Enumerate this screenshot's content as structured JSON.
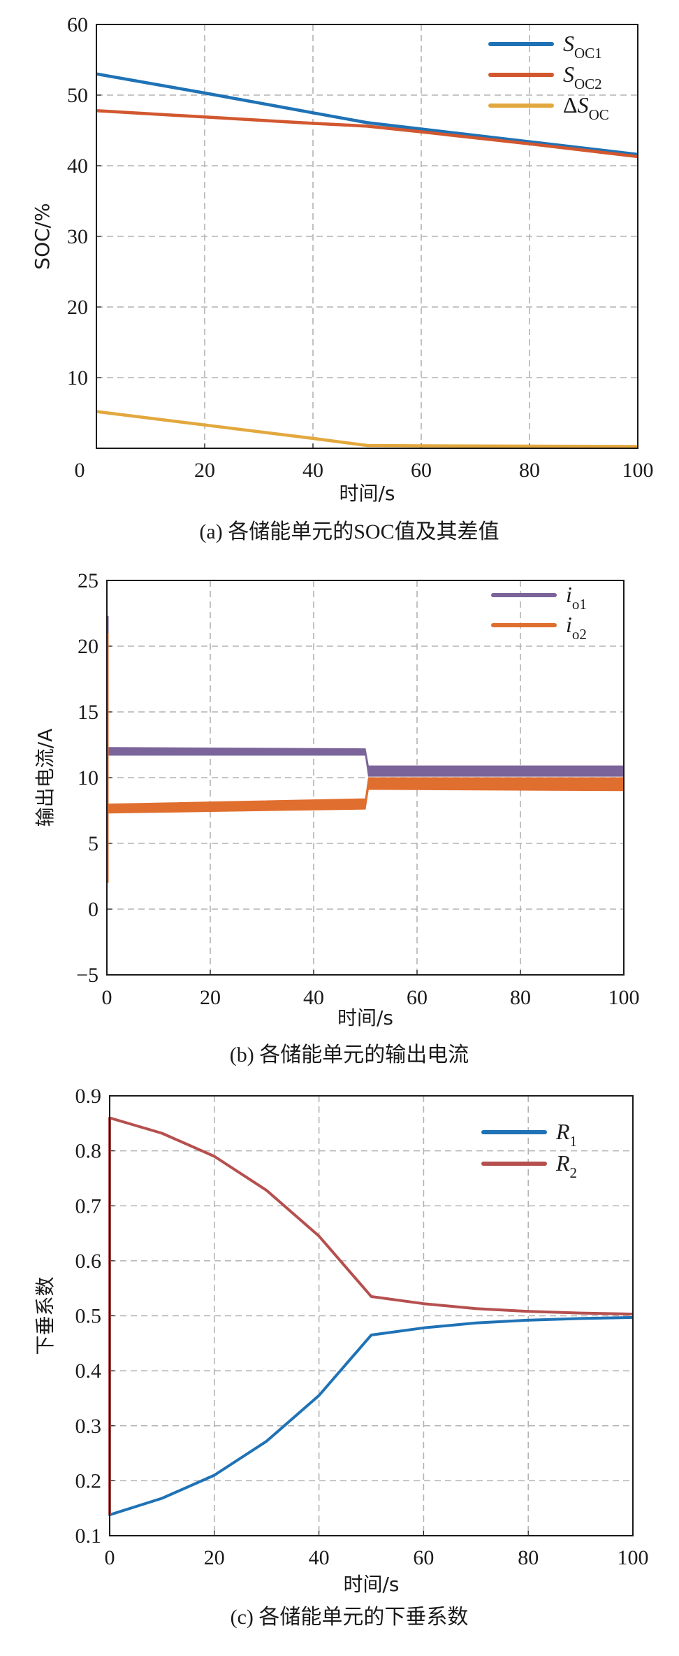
{
  "chart_data": [
    {
      "type": "line",
      "caption": "(a) 各储能单元的SOC值及其差值",
      "xlabel": "时间/s",
      "ylabel": "SOC/%",
      "xlim": [
        0,
        100
      ],
      "ylim": [
        0,
        60
      ],
      "xticks": [
        0,
        20,
        40,
        60,
        80,
        100
      ],
      "yticks": [
        10,
        20,
        30,
        40,
        50,
        60
      ],
      "ytick_labels": [
        "10",
        "20",
        "30",
        "40",
        "50",
        "60"
      ],
      "xtick_labels": [
        "0",
        "20",
        "40",
        "60",
        "80",
        "100"
      ],
      "grid": true,
      "legend_position": "top-right",
      "series": [
        {
          "name": "S",
          "sub": "OC1",
          "prefix": "",
          "color": "#1f72b5",
          "x": [
            0,
            20,
            40,
            50,
            60,
            80,
            100
          ],
          "y": [
            53.0,
            50.3,
            47.5,
            46.1,
            45.2,
            43.4,
            41.6
          ]
        },
        {
          "name": "S",
          "sub": "OC2",
          "prefix": "",
          "color": "#d2572f",
          "x": [
            0,
            20,
            40,
            50,
            60,
            80,
            100
          ],
          "y": [
            47.8,
            46.9,
            46.0,
            45.6,
            44.8,
            43.1,
            41.3
          ]
        },
        {
          "name": "S",
          "sub": "OC",
          "prefix": "Δ",
          "color": "#e3a83d",
          "x": [
            0,
            20,
            40,
            50,
            60,
            80,
            100
          ],
          "y": [
            5.2,
            3.3,
            1.4,
            0.4,
            0.35,
            0.3,
            0.25
          ]
        }
      ]
    },
    {
      "type": "line",
      "caption": "(b) 各储能单元的输出电流",
      "xlabel": "时间/s",
      "ylabel": "输出电流/A",
      "xlim": [
        0,
        100
      ],
      "ylim": [
        -5,
        25
      ],
      "xticks": [
        0,
        20,
        40,
        60,
        80,
        100
      ],
      "xtick_labels": [
        "0",
        "20",
        "40",
        "60",
        "80",
        "100"
      ],
      "yticks": [
        -5,
        0,
        5,
        10,
        15,
        20,
        25
      ],
      "ytick_labels": [
        "−5",
        "0",
        "5",
        "10",
        "15",
        "20",
        "25"
      ],
      "grid": true,
      "legend_position": "top-right",
      "series": [
        {
          "name": "i",
          "sub": "o1",
          "color": "#7a6499",
          "band": {
            "x": [
              0.3,
              50,
              50.6,
              100
            ],
            "upper": [
              12.3,
              12.2,
              10.9,
              10.9
            ],
            "lower": [
              11.7,
              11.7,
              10.1,
              10.1
            ]
          },
          "startup": {
            "x": 0,
            "from": 22.3,
            "to": 12.3
          }
        },
        {
          "name": "i",
          "sub": "o2",
          "color": "#e06e2f",
          "band": {
            "x": [
              0.3,
              50,
              50.6,
              100
            ],
            "upper": [
              8.0,
              8.4,
              10.0,
              10.0
            ],
            "lower": [
              7.3,
              7.6,
              9.1,
              9.0
            ]
          },
          "startup": {
            "x": 0,
            "from": 21.0,
            "to": 2.0
          }
        }
      ]
    },
    {
      "type": "line",
      "caption": "(c) 各储能单元的下垂系数",
      "xlabel": "时间/s",
      "ylabel": "下垂系数",
      "xlim": [
        0,
        100
      ],
      "ylim": [
        0.1,
        0.9
      ],
      "xticks": [
        0,
        20,
        40,
        60,
        80,
        100
      ],
      "xtick_labels": [
        "0",
        "20",
        "40",
        "60",
        "80",
        "100"
      ],
      "yticks": [
        0.1,
        0.2,
        0.3,
        0.4,
        0.5,
        0.6,
        0.7,
        0.8,
        0.9
      ],
      "ytick_labels": [
        "0.1",
        "0.2",
        "0.3",
        "0.4",
        "0.5",
        "0.6",
        "0.7",
        "0.8",
        "0.9"
      ],
      "grid": true,
      "legend_position": "top-right",
      "series": [
        {
          "name": "R",
          "sub": "1",
          "color": "#1f72b5",
          "x": [
            0,
            0,
            10,
            20,
            30,
            40,
            50,
            60,
            70,
            80,
            90,
            100
          ],
          "y": [
            0.86,
            0.138,
            0.168,
            0.21,
            0.272,
            0.355,
            0.465,
            0.478,
            0.487,
            0.492,
            0.495,
            0.497
          ]
        },
        {
          "name": "R",
          "sub": "2",
          "color": "#b5504f",
          "x": [
            0,
            0,
            10,
            20,
            30,
            40,
            50,
            60,
            70,
            80,
            90,
            100
          ],
          "y": [
            0.138,
            0.86,
            0.832,
            0.79,
            0.728,
            0.645,
            0.535,
            0.522,
            0.513,
            0.508,
            0.505,
            0.503
          ]
        }
      ]
    }
  ]
}
